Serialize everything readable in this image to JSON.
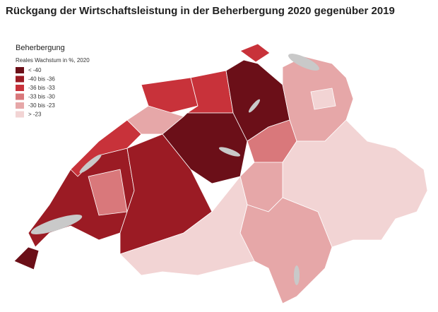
{
  "header": {
    "title": "Rückgang der Wirtschaftsleistung in der Beherbergung 2020 gegenüber 2019"
  },
  "legend": {
    "title": "Beherbergung",
    "subtitle": "Reales Wachstum in %, 2020",
    "items": [
      {
        "label": "< -40",
        "color": "#6b0f18"
      },
      {
        "label": "-40 bis -36",
        "color": "#9b1b24"
      },
      {
        "label": "-36 bis -33",
        "color": "#c8323a"
      },
      {
        "label": "-33 bis -30",
        "color": "#d9787b"
      },
      {
        "label": "-30 bis -23",
        "color": "#e6a7a8"
      },
      {
        "label": "> -23",
        "color": "#f2d4d4"
      }
    ]
  }
}
